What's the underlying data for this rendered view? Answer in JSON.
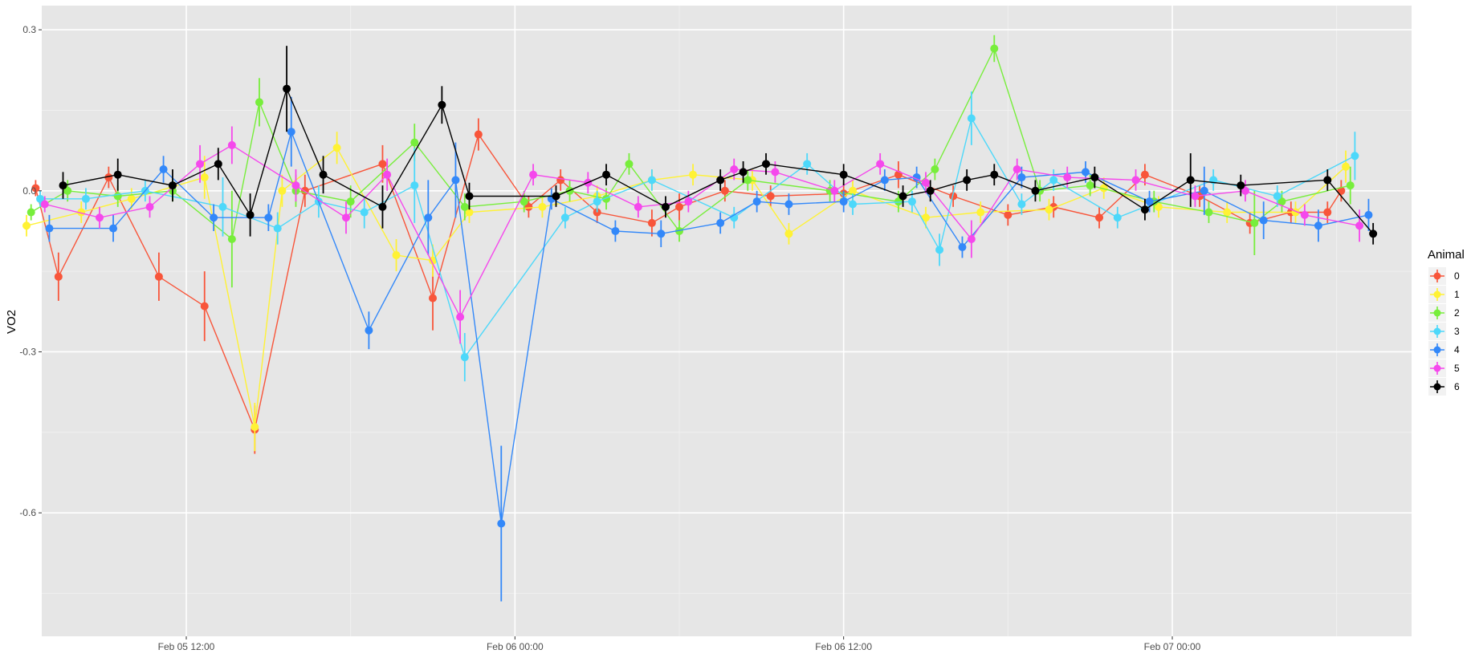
{
  "chart_data": {
    "type": "line",
    "title": "",
    "xlabel": "",
    "ylabel": "VO2",
    "x_ticks": [
      "Feb 05 12:00",
      "Feb 06 00:00",
      "Feb 06 12:00",
      "Feb 07 00:00"
    ],
    "y_ticks": [
      "0.3",
      "0.0",
      "-0.3",
      "-0.6"
    ],
    "ylim": [
      -0.83,
      0.345
    ],
    "grid": true,
    "error_bars": true,
    "legend": {
      "title": "Animal",
      "position": "right"
    },
    "series": [
      {
        "name": "0",
        "color": "#F8553A",
        "x": [
          "2024-02-05 06:30",
          "2024-02-05 07:20",
          "2024-02-05 09:10",
          "2024-02-05 11:00",
          "2024-02-05 12:40",
          "2024-02-05 14:30",
          "2024-02-05 16:20",
          "2024-02-05 19:10",
          "2024-02-05 21:00",
          "2024-02-05 22:40",
          "2024-02-06 00:30",
          "2024-02-06 01:40",
          "2024-02-06 03:00",
          "2024-02-06 05:00",
          "2024-02-06 06:00",
          "2024-02-06 07:40",
          "2024-02-06 09:20",
          "2024-02-06 12:00",
          "2024-02-06 14:00",
          "2024-02-06 16:00",
          "2024-02-06 18:00",
          "2024-02-06 19:40",
          "2024-02-06 21:20",
          "2024-02-06 23:00",
          "2024-02-07 01:00",
          "2024-02-07 02:50",
          "2024-02-07 04:20",
          "2024-02-07 05:40",
          "2024-02-07 06:10"
        ],
        "values": [
          0.005,
          -0.16,
          0.025,
          -0.16,
          -0.215,
          -0.445,
          0.0,
          0.05,
          -0.2,
          0.105,
          -0.03,
          0.02,
          -0.04,
          -0.06,
          -0.03,
          0.0,
          -0.01,
          -0.005,
          0.03,
          -0.01,
          -0.045,
          -0.03,
          -0.05,
          0.03,
          -0.01,
          -0.06,
          -0.04,
          -0.04,
          0.0
        ],
        "errors": [
          0.015,
          0.045,
          0.02,
          0.045,
          0.065,
          0.045,
          0.03,
          0.035,
          0.06,
          0.03,
          0.02,
          0.02,
          0.02,
          0.025,
          0.025,
          0.02,
          0.02,
          0.02,
          0.025,
          0.02,
          0.02,
          0.02,
          0.02,
          0.02,
          0.02,
          0.02,
          0.02,
          0.02,
          0.02
        ]
      },
      {
        "name": "1",
        "color": "#FFF234",
        "x": [
          "2024-02-05 06:10",
          "2024-02-05 08:10",
          "2024-02-05 10:00",
          "2024-02-05 12:40",
          "2024-02-05 14:30",
          "2024-02-05 15:30",
          "2024-02-05 17:30",
          "2024-02-05 19:40",
          "2024-02-05 21:00",
          "2024-02-05 22:20",
          "2024-02-06 01:00",
          "2024-02-06 03:00",
          "2024-02-06 05:00",
          "2024-02-06 06:30",
          "2024-02-06 08:40",
          "2024-02-06 10:00",
          "2024-02-06 12:20",
          "2024-02-06 15:00",
          "2024-02-06 17:00",
          "2024-02-06 19:30",
          "2024-02-06 21:30",
          "2024-02-06 23:30",
          "2024-02-07 02:00",
          "2024-02-07 04:30",
          "2024-02-07 06:20"
        ],
        "values": [
          -0.065,
          -0.04,
          -0.015,
          0.025,
          -0.44,
          0.0,
          0.08,
          -0.12,
          -0.13,
          -0.04,
          -0.03,
          -0.01,
          0.02,
          0.03,
          0.02,
          -0.08,
          0.0,
          -0.05,
          -0.04,
          -0.035,
          0.005,
          -0.03,
          -0.04,
          -0.04,
          0.045
        ],
        "errors": [
          0.02,
          0.02,
          0.02,
          0.04,
          0.045,
          0.03,
          0.03,
          0.03,
          0.03,
          0.02,
          0.02,
          0.02,
          0.02,
          0.02,
          0.02,
          0.02,
          0.02,
          0.02,
          0.02,
          0.02,
          0.02,
          0.02,
          0.02,
          0.02,
          0.03
        ]
      },
      {
        "name": "2",
        "color": "#77EE3B",
        "x": [
          "2024-02-05 06:20",
          "2024-02-05 07:40",
          "2024-02-05 09:30",
          "2024-02-05 11:30",
          "2024-02-05 13:40",
          "2024-02-05 14:40",
          "2024-02-05 16:00",
          "2024-02-05 18:00",
          "2024-02-05 20:20",
          "2024-02-05 22:10",
          "2024-02-06 00:20",
          "2024-02-06 02:00",
          "2024-02-06 03:20",
          "2024-02-06 04:10",
          "2024-02-06 06:00",
          "2024-02-06 08:30",
          "2024-02-06 11:30",
          "2024-02-06 14:00",
          "2024-02-06 15:20",
          "2024-02-06 17:30",
          "2024-02-06 19:10",
          "2024-02-06 21:00",
          "2024-02-06 23:20",
          "2024-02-07 01:20",
          "2024-02-07 03:00",
          "2024-02-07 04:00",
          "2024-02-07 06:30"
        ],
        "values": [
          -0.04,
          0.0,
          -0.01,
          0.0,
          -0.09,
          0.165,
          0.0,
          -0.02,
          0.09,
          -0.03,
          -0.02,
          0.0,
          -0.015,
          0.05,
          -0.075,
          0.02,
          0.0,
          -0.02,
          0.04,
          0.265,
          0.0,
          0.01,
          -0.02,
          -0.04,
          -0.06,
          -0.02,
          0.01
        ],
        "errors": [
          0.015,
          0.02,
          0.02,
          0.02,
          0.09,
          0.045,
          0.03,
          0.03,
          0.035,
          0.025,
          0.02,
          0.02,
          0.02,
          0.02,
          0.02,
          0.02,
          0.02,
          0.02,
          0.02,
          0.025,
          0.02,
          0.02,
          0.02,
          0.02,
          0.06,
          0.02,
          0.035
        ]
      },
      {
        "name": "3",
        "color": "#4DD8FA",
        "x": [
          "2024-02-05 06:40",
          "2024-02-05 08:20",
          "2024-02-05 10:30",
          "2024-02-05 13:20",
          "2024-02-05 15:20",
          "2024-02-05 16:50",
          "2024-02-05 18:30",
          "2024-02-05 20:20",
          "2024-02-05 22:10",
          "2024-02-06 01:50",
          "2024-02-06 03:00",
          "2024-02-06 05:00",
          "2024-02-06 08:00",
          "2024-02-06 10:40",
          "2024-02-06 12:20",
          "2024-02-06 14:30",
          "2024-02-06 15:30",
          "2024-02-06 16:40",
          "2024-02-06 18:30",
          "2024-02-06 19:40",
          "2024-02-06 22:00",
          "2024-02-07 01:30",
          "2024-02-07 03:50",
          "2024-02-07 06:40"
        ],
        "values": [
          -0.015,
          -0.015,
          0.0,
          -0.03,
          -0.07,
          -0.02,
          -0.04,
          0.01,
          -0.31,
          -0.05,
          -0.02,
          0.02,
          -0.05,
          0.05,
          -0.025,
          -0.02,
          -0.11,
          0.135,
          -0.025,
          0.02,
          -0.05,
          0.02,
          -0.01,
          0.065
        ],
        "errors": [
          0.015,
          0.02,
          0.02,
          0.055,
          0.03,
          0.03,
          0.03,
          0.07,
          0.045,
          0.02,
          0.02,
          0.02,
          0.02,
          0.02,
          0.02,
          0.02,
          0.03,
          0.05,
          0.02,
          0.02,
          0.02,
          0.02,
          0.02,
          0.045
        ]
      },
      {
        "name": "4",
        "color": "#3388F9",
        "x": [
          "2024-02-05 07:00",
          "2024-02-05 09:20",
          "2024-02-05 11:10",
          "2024-02-05 13:00",
          "2024-02-05 15:00",
          "2024-02-05 15:50",
          "2024-02-05 18:40",
          "2024-02-05 20:50",
          "2024-02-05 21:50",
          "2024-02-05 23:30",
          "2024-02-06 01:20",
          "2024-02-06 03:40",
          "2024-02-06 05:20",
          "2024-02-06 07:30",
          "2024-02-06 08:50",
          "2024-02-06 10:00",
          "2024-02-06 12:00",
          "2024-02-06 13:30",
          "2024-02-06 14:40",
          "2024-02-06 16:20",
          "2024-02-06 18:30",
          "2024-02-06 20:50",
          "2024-02-06 23:10",
          "2024-02-07 01:10",
          "2024-02-07 03:20",
          "2024-02-07 05:20",
          "2024-02-07 07:10"
        ],
        "values": [
          -0.07,
          -0.07,
          0.04,
          -0.05,
          -0.05,
          0.11,
          -0.26,
          -0.05,
          0.02,
          -0.62,
          -0.015,
          -0.075,
          -0.08,
          -0.06,
          -0.02,
          -0.025,
          -0.02,
          0.02,
          0.025,
          -0.105,
          0.025,
          0.035,
          -0.02,
          0.0,
          -0.055,
          -0.065,
          -0.045
        ],
        "errors": [
          0.025,
          0.025,
          0.025,
          0.025,
          0.025,
          0.065,
          0.035,
          0.07,
          0.07,
          0.145,
          0.02,
          0.02,
          0.025,
          0.02,
          0.02,
          0.02,
          0.02,
          0.02,
          0.02,
          0.02,
          0.02,
          0.02,
          0.02,
          0.045,
          0.035,
          0.03,
          0.03
        ]
      },
      {
        "name": "5",
        "color": "#F548EC",
        "x": [
          "2024-02-05 06:50",
          "2024-02-05 08:50",
          "2024-02-05 10:40",
          "2024-02-05 12:30",
          "2024-02-05 13:40",
          "2024-02-05 16:00",
          "2024-02-05 17:50",
          "2024-02-05 19:20",
          "2024-02-05 22:00",
          "2024-02-06 00:40",
          "2024-02-06 02:40",
          "2024-02-06 04:30",
          "2024-02-06 06:20",
          "2024-02-06 08:00",
          "2024-02-06 09:30",
          "2024-02-06 11:40",
          "2024-02-06 13:20",
          "2024-02-06 15:00",
          "2024-02-06 16:40",
          "2024-02-06 18:20",
          "2024-02-06 20:10",
          "2024-02-06 22:40",
          "2024-02-07 00:50",
          "2024-02-07 02:40",
          "2024-02-07 04:50",
          "2024-02-07 06:50"
        ],
        "values": [
          -0.025,
          -0.05,
          -0.03,
          0.05,
          0.085,
          0.01,
          -0.05,
          0.03,
          -0.235,
          0.03,
          0.015,
          -0.03,
          -0.02,
          0.04,
          0.035,
          0.0,
          0.05,
          0.015,
          -0.09,
          0.04,
          0.025,
          0.02,
          -0.01,
          0.0,
          -0.045,
          -0.065
        ],
        "errors": [
          0.015,
          0.02,
          0.02,
          0.035,
          0.035,
          0.03,
          0.03,
          0.03,
          0.05,
          0.02,
          0.02,
          0.02,
          0.02,
          0.02,
          0.02,
          0.02,
          0.02,
          0.02,
          0.035,
          0.02,
          0.02,
          0.02,
          0.02,
          0.02,
          0.02,
          0.03
        ]
      },
      {
        "name": "6",
        "color": "#000000",
        "x": [
          "2024-02-05 07:30",
          "2024-02-05 09:30",
          "2024-02-05 11:30",
          "2024-02-05 13:10",
          "2024-02-05 14:20",
          "2024-02-05 15:40",
          "2024-02-05 17:00",
          "2024-02-05 19:10",
          "2024-02-05 21:20",
          "2024-02-05 22:20",
          "2024-02-06 01:30",
          "2024-02-06 03:20",
          "2024-02-06 05:30",
          "2024-02-06 07:30",
          "2024-02-06 08:20",
          "2024-02-06 09:10",
          "2024-02-06 12:00",
          "2024-02-06 14:10",
          "2024-02-06 15:10",
          "2024-02-06 16:30",
          "2024-02-06 17:30",
          "2024-02-06 19:00",
          "2024-02-06 21:10",
          "2024-02-06 23:00",
          "2024-02-07 00:40",
          "2024-02-07 02:30",
          "2024-02-07 05:40",
          "2024-02-07 07:20"
        ],
        "values": [
          0.01,
          0.03,
          0.01,
          0.05,
          -0.045,
          0.19,
          0.03,
          -0.03,
          0.16,
          -0.01,
          -0.01,
          0.03,
          -0.03,
          0.02,
          0.035,
          0.05,
          0.03,
          -0.01,
          0.0,
          0.02,
          0.03,
          0.0,
          0.025,
          -0.035,
          0.02,
          0.01,
          0.02,
          -0.08
        ],
        "errors": [
          0.025,
          0.03,
          0.03,
          0.03,
          0.04,
          0.08,
          0.035,
          0.04,
          0.035,
          0.025,
          0.02,
          0.02,
          0.02,
          0.02,
          0.02,
          0.02,
          0.02,
          0.02,
          0.02,
          0.02,
          0.02,
          0.02,
          0.02,
          0.02,
          0.05,
          0.02,
          0.02,
          0.02
        ]
      }
    ]
  }
}
